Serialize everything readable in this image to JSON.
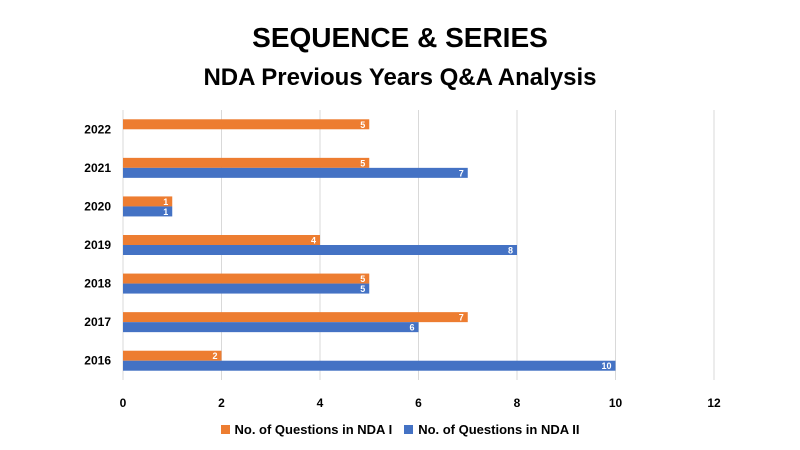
{
  "title": "SEQUENCE & SERIES",
  "subtitle": "NDA Previous Years Q&A Analysis",
  "chart_data": {
    "type": "bar",
    "orientation": "horizontal",
    "categories": [
      "2022",
      "2021",
      "2020",
      "2019",
      "2018",
      "2017",
      "2016"
    ],
    "series": [
      {
        "name": "No. of Questions in NDA I",
        "color": "#ED7D31",
        "values": [
          5,
          5,
          1,
          4,
          5,
          7,
          2
        ]
      },
      {
        "name": "No. of Questions in NDA II",
        "color": "#4472C4",
        "values": [
          null,
          7,
          1,
          8,
          5,
          6,
          10
        ]
      }
    ],
    "xlim": [
      0,
      12
    ],
    "xticks": [
      "0",
      "2",
      "4",
      "6",
      "8",
      "10",
      "12"
    ],
    "grid": true,
    "data_labels": true,
    "legend_position": "bottom"
  }
}
